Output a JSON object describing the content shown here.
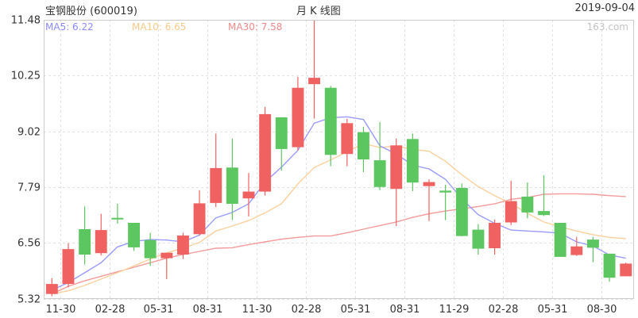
{
  "header": {
    "stock": "宝钢股份 (600019)",
    "title": "月 K 线图",
    "date": "2019-09-04",
    "watermark": "163.com"
  },
  "legend": {
    "ma5": "MA5: 6.22",
    "ma10": "MA10: 6.65",
    "ma30": "MA30: 7.58"
  },
  "colors": {
    "up": "#f06262",
    "down": "#5cc660",
    "ma5": "#9a9aff",
    "ma10": "#fbd09e",
    "ma30": "#f59a9a",
    "grid": "#e2e2e2",
    "axis": "#cccccc"
  },
  "chart_data": {
    "type": "candlestick",
    "title": "月 K 线图",
    "ylim": [
      5.32,
      11.48
    ],
    "y_ticks": [
      "11.48",
      "10.25",
      "9.02",
      "7.79",
      "6.56",
      "5.32"
    ],
    "x_ticks": [
      {
        "label": "11-30",
        "index": 1
      },
      {
        "label": "02-28",
        "index": 4
      },
      {
        "label": "05-31",
        "index": 7
      },
      {
        "label": "08-31",
        "index": 10
      },
      {
        "label": "11-30",
        "index": 13
      },
      {
        "label": "02-28",
        "index": 16
      },
      {
        "label": "05-31",
        "index": 19
      },
      {
        "label": "08-31",
        "index": 22
      },
      {
        "label": "11-29",
        "index": 25
      },
      {
        "label": "02-28",
        "index": 28
      },
      {
        "label": "05-31",
        "index": 31
      },
      {
        "label": "08-30",
        "index": 34
      }
    ],
    "candles": [
      {
        "o": 5.43,
        "c": 5.65,
        "h": 5.78,
        "l": 5.38
      },
      {
        "o": 5.65,
        "c": 6.42,
        "h": 6.55,
        "l": 5.58
      },
      {
        "o": 6.86,
        "c": 6.3,
        "h": 7.36,
        "l": 6.08
      },
      {
        "o": 6.33,
        "c": 6.84,
        "h": 7.2,
        "l": 6.28
      },
      {
        "o": 7.11,
        "c": 7.08,
        "h": 7.42,
        "l": 6.98
      },
      {
        "o": 7.0,
        "c": 6.46,
        "h": 7.0,
        "l": 6.38
      },
      {
        "o": 6.62,
        "c": 6.22,
        "h": 6.78,
        "l": 6.05
      },
      {
        "o": 6.22,
        "c": 6.34,
        "h": 6.34,
        "l": 5.76
      },
      {
        "o": 6.3,
        "c": 6.72,
        "h": 6.78,
        "l": 6.2
      },
      {
        "o": 6.75,
        "c": 7.43,
        "h": 7.72,
        "l": 6.72
      },
      {
        "o": 7.44,
        "c": 8.21,
        "h": 8.97,
        "l": 7.35
      },
      {
        "o": 8.22,
        "c": 7.42,
        "h": 8.86,
        "l": 7.06
      },
      {
        "o": 7.54,
        "c": 7.69,
        "h": 8.1,
        "l": 7.14
      },
      {
        "o": 7.69,
        "c": 9.4,
        "h": 9.56,
        "l": 7.6
      },
      {
        "o": 9.33,
        "c": 8.63,
        "h": 9.33,
        "l": 8.15
      },
      {
        "o": 8.67,
        "c": 9.98,
        "h": 10.22,
        "l": 8.6
      },
      {
        "o": 10.06,
        "c": 10.2,
        "h": 11.48,
        "l": 9.3
      },
      {
        "o": 9.98,
        "c": 8.5,
        "h": 10.02,
        "l": 8.25
      },
      {
        "o": 8.52,
        "c": 9.2,
        "h": 9.3,
        "l": 8.25
      },
      {
        "o": 9.0,
        "c": 8.4,
        "h": 9.12,
        "l": 8.12
      },
      {
        "o": 8.38,
        "c": 7.79,
        "h": 9.22,
        "l": 7.72
      },
      {
        "o": 7.75,
        "c": 8.71,
        "h": 8.86,
        "l": 6.93
      },
      {
        "o": 8.85,
        "c": 7.89,
        "h": 8.97,
        "l": 7.7
      },
      {
        "o": 7.81,
        "c": 7.9,
        "h": 7.96,
        "l": 7.04
      },
      {
        "o": 7.71,
        "c": 7.67,
        "h": 7.84,
        "l": 7.06
      },
      {
        "o": 7.77,
        "c": 6.71,
        "h": 7.87,
        "l": 6.7
      },
      {
        "o": 6.85,
        "c": 6.43,
        "h": 6.97,
        "l": 6.3
      },
      {
        "o": 6.44,
        "c": 7.0,
        "h": 7.07,
        "l": 6.3
      },
      {
        "o": 7.01,
        "c": 7.48,
        "h": 7.93,
        "l": 6.95
      },
      {
        "o": 7.58,
        "c": 7.23,
        "h": 7.89,
        "l": 7.1
      },
      {
        "o": 7.26,
        "c": 7.17,
        "h": 8.05,
        "l": 7.15
      },
      {
        "o": 7.0,
        "c": 6.25,
        "h": 7.0,
        "l": 6.25
      },
      {
        "o": 6.29,
        "c": 6.48,
        "h": 6.69,
        "l": 6.27
      },
      {
        "o": 6.63,
        "c": 6.45,
        "h": 6.69,
        "l": 6.13
      },
      {
        "o": 6.32,
        "c": 5.79,
        "h": 6.32,
        "l": 5.7
      },
      {
        "o": 5.82,
        "c": 6.1,
        "h": 6.12,
        "l": 5.82
      }
    ],
    "ma5": [
      5.52,
      5.68,
      5.9,
      6.12,
      6.47,
      6.59,
      6.63,
      6.62,
      6.58,
      6.73,
      7.11,
      7.23,
      7.42,
      7.9,
      8.23,
      8.6,
      9.2,
      9.32,
      9.34,
      9.28,
      8.7,
      8.52,
      8.27,
      8.19,
      7.96,
      7.53,
      7.18,
      6.99,
      6.84,
      6.82,
      6.8,
      6.77,
      6.58,
      6.49,
      6.29,
      6.22
    ],
    "ma10": [
      5.43,
      5.5,
      5.62,
      5.76,
      5.9,
      6.05,
      6.2,
      6.34,
      6.44,
      6.57,
      6.82,
      6.93,
      7.05,
      7.22,
      7.42,
      7.86,
      8.22,
      8.39,
      8.57,
      8.75,
      8.66,
      8.7,
      8.62,
      8.58,
      8.36,
      8.06,
      7.8,
      7.6,
      7.43,
      7.21,
      7.02,
      6.91,
      6.82,
      6.74,
      6.68,
      6.65
    ],
    "ma30": [
      5.43,
      5.6,
      5.72,
      5.82,
      5.92,
      6.02,
      6.12,
      6.22,
      6.3,
      6.37,
      6.44,
      6.45,
      6.52,
      6.58,
      6.64,
      6.68,
      6.71,
      6.71,
      6.78,
      6.86,
      6.94,
      7.02,
      7.12,
      7.2,
      7.26,
      7.31,
      7.36,
      7.42,
      7.52,
      7.56,
      7.63,
      7.64,
      7.64,
      7.63,
      7.6,
      7.58
    ]
  }
}
